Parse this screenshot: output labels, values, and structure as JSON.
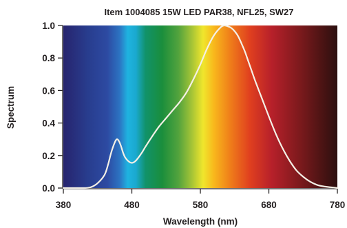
{
  "chart_data": {
    "type": "line",
    "title": "Item 1004085 15W LED PAR38, NFL25, SW27",
    "xlabel": "Wavelength (nm)",
    "ylabel": "Spectrum",
    "xlim": [
      380,
      780
    ],
    "ylim": [
      0,
      1.0
    ],
    "x_ticks": [
      "380",
      "480",
      "580",
      "680",
      "780"
    ],
    "y_ticks": [
      "0.0",
      "0.2",
      "0.4",
      "0.6",
      "0.8",
      "1.0"
    ],
    "background": "visible-light spectrum gradient (violet to deep red)",
    "grid": false,
    "legend": "none",
    "series": [
      {
        "color": "#f4f0e6",
        "x": [
          380,
          410,
          420,
          430,
          440,
          445,
          450,
          455,
          458,
          461,
          464,
          467,
          470,
          475,
          480,
          485,
          490,
          495,
          500,
          510,
          520,
          530,
          540,
          550,
          560,
          570,
          580,
          590,
          600,
          610,
          615,
          620,
          625,
          630,
          635,
          640,
          645,
          650,
          655,
          660,
          670,
          680,
          690,
          700,
          710,
          720,
          730,
          740,
          750,
          760,
          770,
          780
        ],
        "y": [
          0.0,
          0.0,
          0.005,
          0.03,
          0.08,
          0.14,
          0.22,
          0.28,
          0.3,
          0.29,
          0.26,
          0.22,
          0.19,
          0.165,
          0.155,
          0.165,
          0.19,
          0.22,
          0.255,
          0.32,
          0.38,
          0.43,
          0.48,
          0.53,
          0.59,
          0.67,
          0.76,
          0.86,
          0.94,
          0.99,
          1.0,
          0.995,
          0.985,
          0.965,
          0.935,
          0.89,
          0.84,
          0.78,
          0.72,
          0.66,
          0.55,
          0.44,
          0.335,
          0.245,
          0.17,
          0.11,
          0.07,
          0.04,
          0.02,
          0.01,
          0.005,
          0.0
        ]
      }
    ]
  }
}
